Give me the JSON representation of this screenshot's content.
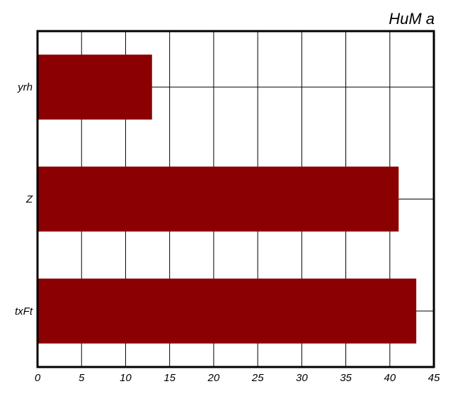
{
  "chart_data": {
    "type": "bar",
    "orientation": "horizontal",
    "title": "HuM a",
    "xlabel": "",
    "ylabel": "",
    "categories": [
      "yrh",
      "Z",
      "txFt"
    ],
    "values": [
      13,
      41,
      43
    ],
    "xlim": [
      0,
      45
    ],
    "xticks": [
      0,
      5,
      10,
      15,
      20,
      25,
      30,
      35,
      40,
      45
    ],
    "grid": true,
    "bar_color": "#8b0000",
    "title_position": "top-right"
  }
}
